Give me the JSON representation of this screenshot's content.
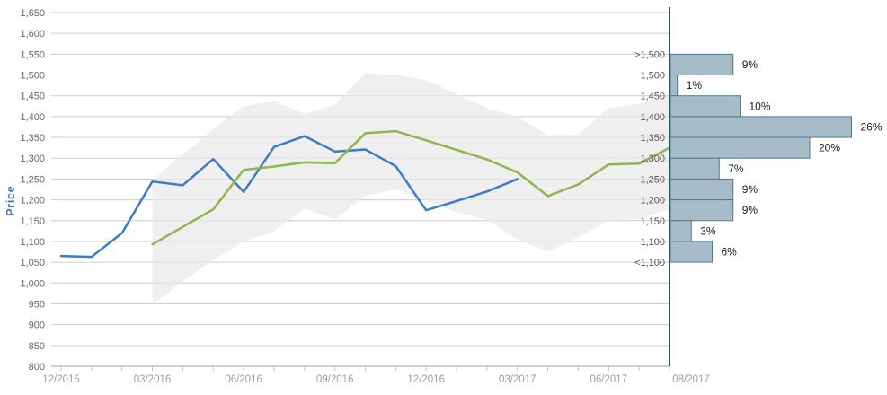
{
  "chart_data": [
    {
      "type": "line",
      "title": "",
      "ylabel": "Price",
      "ylim": [
        800,
        1650
      ],
      "ytick_step": 50,
      "grid": true,
      "ytick_labels": [
        "1,650",
        "1,600",
        "1,550",
        "1,500",
        "1,450",
        "1,400",
        "1,350",
        "1,300",
        "1,250",
        "1,200",
        "1,150",
        "1,100",
        "1,050",
        "1,000",
        "950",
        "900",
        "850",
        "800"
      ],
      "xtick_labels": [
        "12/2015",
        "03/2016",
        "06/2016",
        "09/2016",
        "12/2016",
        "03/2017",
        "06/2017"
      ],
      "xtick_month_indexes": [
        0,
        3,
        6,
        9,
        12,
        15,
        18
      ],
      "months_total": 20,
      "colors": {
        "grid": "#cccccc",
        "axis": "#b3c6d6",
        "y_labels": "#666666",
        "x_labels": "#9e9e9e",
        "y_title": "#4477bb"
      },
      "series": [
        {
          "name": "blue-line",
          "color": "#3b7cc4",
          "start_month": 0,
          "values": [
            1065,
            1063,
            1120,
            1244,
            1235,
            1298,
            1219,
            1327,
            1353,
            1316,
            1321,
            1281,
            1175,
            1197,
            1220,
            1250
          ]
        },
        {
          "name": "green-line",
          "color": "#90b44e",
          "start_month": 3,
          "values": [
            1093,
            1135,
            1177,
            1272,
            1280,
            1290,
            1288,
            1360,
            1365,
            1343,
            1320,
            1297,
            1266,
            1209,
            1237,
            1285,
            1287,
            1325
          ]
        }
      ],
      "band": {
        "name": "shaded-range",
        "color": "#f2f2f2",
        "start_month": 3,
        "upper": [
          1248,
          1310,
          1370,
          1425,
          1437,
          1407,
          1428,
          1505,
          1500,
          1488,
          1455,
          1420,
          1400,
          1355,
          1357,
          1421,
          1431,
          1450
        ],
        "lower": [
          947,
          1005,
          1055,
          1100,
          1125,
          1180,
          1152,
          1210,
          1225,
          1198,
          1170,
          1152,
          1105,
          1075,
          1110,
          1150,
          1154,
          1177
        ]
      }
    },
    {
      "type": "bar",
      "orientation": "horizontal",
      "x_label": "08/2017",
      "bin_edge_labels": [
        ">1,500",
        "1,500",
        "1,450",
        "1,400",
        "1,350",
        "1,300",
        "1,250",
        "1,200",
        "1,150",
        "1,100",
        "<1,100"
      ],
      "values_pct": [
        9,
        1,
        10,
        26,
        20,
        7,
        9,
        9,
        3,
        6
      ],
      "bar_fill": "#a6bcc9",
      "bar_border": "#54788e",
      "divider_color": "#2d5968",
      "bin_label_color": "#555555",
      "pct_label_color": "#1a1a1a",
      "x_label_color": "#9e9e9e"
    }
  ]
}
